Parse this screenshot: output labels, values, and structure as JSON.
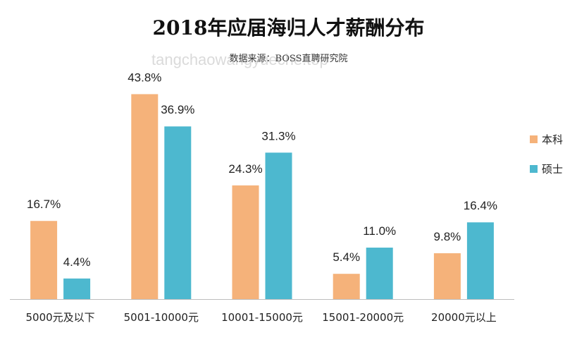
{
  "chart_data": {
    "type": "bar",
    "title": "2018年应届海归人才薪酬分布",
    "subtitle": "数据来源：BOSS直聘研究院",
    "watermark": "tangchaowangyueche.top",
    "categories": [
      "5000元及以下",
      "5001-10000元",
      "10001-15000元",
      "15001-20000元",
      "20000元以上"
    ],
    "series": [
      {
        "name": "本科",
        "color": "#F5B27A",
        "values": [
          16.7,
          43.8,
          24.3,
          5.4,
          9.8
        ],
        "labels": [
          "16.7%",
          "43.8%",
          "24.3%",
          "5.4%",
          "9.8%"
        ]
      },
      {
        "name": "硕士",
        "color": "#4DB8CF",
        "values": [
          4.4,
          36.9,
          31.3,
          11.0,
          16.4
        ],
        "labels": [
          "4.4%",
          "36.9%",
          "31.3%",
          "11.0%",
          "16.4%"
        ]
      }
    ],
    "ylim": [
      0,
      50
    ],
    "grid": false,
    "legend": "right"
  }
}
